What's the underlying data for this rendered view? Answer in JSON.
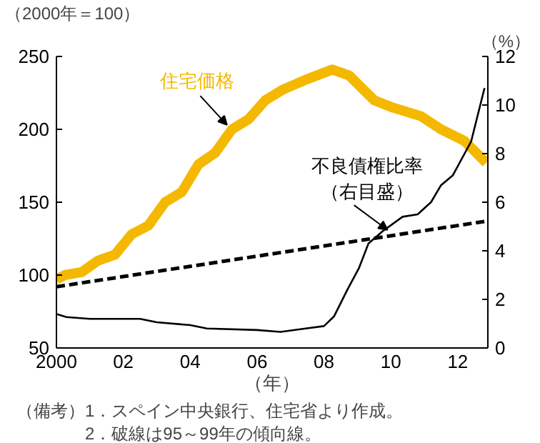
{
  "chart_data": {
    "type": "line",
    "ylabel": "（2000年＝100）",
    "y2label": "（%）",
    "xlabel": "（年）",
    "xlim": [
      2000,
      2012.9
    ],
    "xticks": [
      {
        "value": 2000,
        "label": "2000"
      },
      {
        "value": 2002,
        "label": "02"
      },
      {
        "value": 2004,
        "label": "04"
      },
      {
        "value": 2006,
        "label": "06"
      },
      {
        "value": 2008,
        "label": "08"
      },
      {
        "value": 2010,
        "label": "10"
      },
      {
        "value": 2012,
        "label": "12"
      }
    ],
    "ylim": [
      50,
      250
    ],
    "yticks": [
      50,
      100,
      150,
      200,
      250
    ],
    "y2lim": [
      0,
      12
    ],
    "y2ticks": [
      0,
      2,
      4,
      6,
      8,
      10,
      12
    ],
    "series": [
      {
        "name": "住宅価格",
        "color": "#f5b800",
        "x": [
          2000.0,
          2000.25,
          2000.75,
          2001.25,
          2001.75,
          2002.25,
          2002.75,
          2003.25,
          2003.75,
          2004.25,
          2004.75,
          2005.25,
          2005.75,
          2006.25,
          2006.75,
          2007.45,
          2008.25,
          2008.75,
          2009.5,
          2010.05,
          2010.9,
          2011.5,
          2012.2,
          2012.85
        ],
        "values": [
          97,
          100,
          102,
          110,
          114,
          128,
          134,
          150,
          157,
          176,
          184,
          200,
          207,
          220,
          227,
          234,
          241,
          237,
          220,
          215,
          209,
          200,
          192,
          177
        ]
      },
      {
        "name": "不良債権比率（右目盛）",
        "color": "#000000",
        "axis": "y2",
        "x": [
          2000.0,
          2000.3,
          2001.0,
          2002.5,
          2003.0,
          2004.0,
          2004.5,
          2006.0,
          2006.7,
          2007.45,
          2008.0,
          2008.3,
          2008.7,
          2009.05,
          2009.33,
          2009.75,
          2010.35,
          2010.8,
          2011.2,
          2011.5,
          2011.85,
          2012.4,
          2012.8
        ],
        "values": [
          1.4,
          1.27,
          1.2,
          1.2,
          1.06,
          0.94,
          0.8,
          0.74,
          0.66,
          0.8,
          0.9,
          1.3,
          2.4,
          3.3,
          4.3,
          4.8,
          5.4,
          5.5,
          6.0,
          6.7,
          7.1,
          8.5,
          10.7
        ]
      },
      {
        "color": "#000000",
        "line_style": "dashed",
        "x": [
          2000.0,
          2002.0,
          2004.0,
          2006.0,
          2008.0,
          2010.0,
          2012.85
        ],
        "values": [
          92,
          99,
          106,
          113,
          120,
          127,
          137
        ]
      }
    ],
    "grid": false,
    "annotations": [
      "（備考）1．スペイン中央銀行、住宅省より作成。",
      "2．破線は95～99年の傾向線。"
    ]
  }
}
